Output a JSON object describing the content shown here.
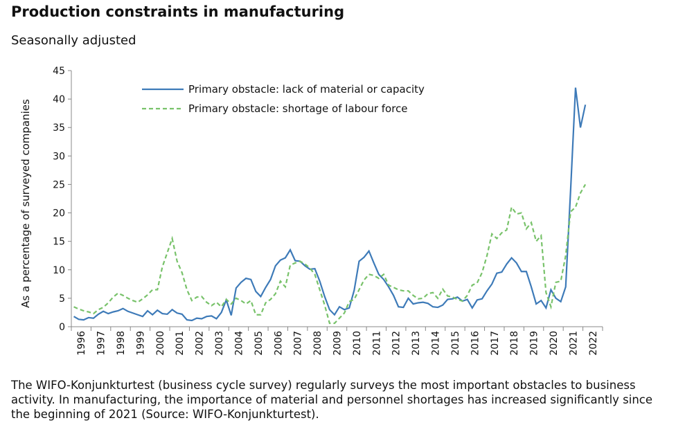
{
  "chart_data": {
    "type": "line",
    "title": "Production constraints in manufacturing",
    "subtitle": "Seasonally adjusted",
    "y_label": "As a percentage of surveyed companies",
    "note": "The WIFO-Konjunkturtest (business cycle survey) regularly surveys the most important obstacles to business activity. In manufacturing, the importance of material and personnel shortages has increased significantly since the beginning of 2021 (Source: WIFO-Konjunkturtest).",
    "categories": [
      "1996",
      null,
      null,
      null,
      "1997",
      null,
      null,
      null,
      "1998",
      null,
      null,
      null,
      "1999",
      null,
      null,
      null,
      "2000",
      null,
      null,
      null,
      "2001",
      null,
      null,
      null,
      "2002",
      null,
      null,
      null,
      "2003",
      null,
      null,
      null,
      "2004",
      null,
      null,
      null,
      "2005",
      null,
      null,
      null,
      "2006",
      null,
      null,
      null,
      "2007",
      null,
      null,
      null,
      "2008",
      null,
      null,
      null,
      "2009",
      null,
      null,
      null,
      "2010",
      null,
      null,
      null,
      "2011",
      null,
      null,
      null,
      "2012",
      null,
      null,
      null,
      "2013",
      null,
      null,
      null,
      "2014",
      null,
      null,
      null,
      "2015",
      null,
      null,
      null,
      "2016",
      null,
      null,
      null,
      "2017",
      null,
      null,
      null,
      "2018",
      null,
      null,
      null,
      "2019",
      null,
      null,
      null,
      "2020",
      null,
      null,
      null,
      "2021",
      null,
      null,
      null,
      "2022",
      null,
      null,
      null
    ],
    "series": [
      {
        "name": "Primary obstacle: lack of material or capacity",
        "color": "#3d7ab8",
        "dash": false,
        "values": [
          1.8,
          1.3,
          1.2,
          1.6,
          1.5,
          2.2,
          2.7,
          2.3,
          2.6,
          2.8,
          3.2,
          2.7,
          2.4,
          2.1,
          1.8,
          2.8,
          2.1,
          2.9,
          2.3,
          2.2,
          3.0,
          2.4,
          2.2,
          1.2,
          1.1,
          1.5,
          1.4,
          1.8,
          1.9,
          1.4,
          2.5,
          4.7,
          2.0,
          6.8,
          7.8,
          8.5,
          8.3,
          6.2,
          5.3,
          6.9,
          8.3,
          10.7,
          11.7,
          12.1,
          13.5,
          11.6,
          11.5,
          10.7,
          10.1,
          10.2,
          8.0,
          5.3,
          3.0,
          2.1,
          3.5,
          3.0,
          3.3,
          6.4,
          11.5,
          12.2,
          13.3,
          11.2,
          9.2,
          8.3,
          7.0,
          5.5,
          3.5,
          3.4,
          5.0,
          4.0,
          4.2,
          4.3,
          4.1,
          3.5,
          3.4,
          3.8,
          4.8,
          4.9,
          5.2,
          4.5,
          4.8,
          3.3,
          4.7,
          4.9,
          6.3,
          7.5,
          9.4,
          9.6,
          11.0,
          12.1,
          11.2,
          9.7,
          9.7,
          7.0,
          4.0,
          4.6,
          3.3,
          6.5,
          5.0,
          4.4,
          7.0,
          24.0,
          42.0,
          35.0,
          39.0,
          null,
          null,
          null
        ]
      },
      {
        "name": "Primary obstacle: shortage of labour force",
        "color": "#78c26a",
        "dash": true,
        "values": [
          3.5,
          3.1,
          2.8,
          2.6,
          2.3,
          3.0,
          3.4,
          4.2,
          5.2,
          5.9,
          5.5,
          5.0,
          4.6,
          4.3,
          4.9,
          5.6,
          6.5,
          6.5,
          10.5,
          13.0,
          15.5,
          11.5,
          9.5,
          6.5,
          4.6,
          5.2,
          5.3,
          4.3,
          3.7,
          4.3,
          3.5,
          4.8,
          4.0,
          5.0,
          4.6,
          4.0,
          4.6,
          2.1,
          2.1,
          4.2,
          4.8,
          5.8,
          8.0,
          7.0,
          10.8,
          11.2,
          11.5,
          11.0,
          10.3,
          9.2,
          6.5,
          3.8,
          0.6,
          0.6,
          1.5,
          2.4,
          4.4,
          4.8,
          6.5,
          8.2,
          9.2,
          9.0,
          8.5,
          9.2,
          7.3,
          6.9,
          6.5,
          6.3,
          6.3,
          5.5,
          4.9,
          5.0,
          5.8,
          6.0,
          5.0,
          6.6,
          5.4,
          5.2,
          4.8,
          4.5,
          5.5,
          7.3,
          7.7,
          9.5,
          12.5,
          16.3,
          15.5,
          16.5,
          17.0,
          21.0,
          19.8,
          20.0,
          17.2,
          18.3,
          15.0,
          16.0,
          6.0,
          3.5,
          7.8,
          8.0,
          12.5,
          20.2,
          21.0,
          23.5,
          25.0,
          null,
          null,
          null
        ]
      }
    ],
    "ylim": [
      0,
      45
    ],
    "yticks": [
      0,
      5,
      10,
      15,
      20,
      25,
      30,
      35,
      40,
      45
    ],
    "grid": false,
    "legend": "top"
  }
}
